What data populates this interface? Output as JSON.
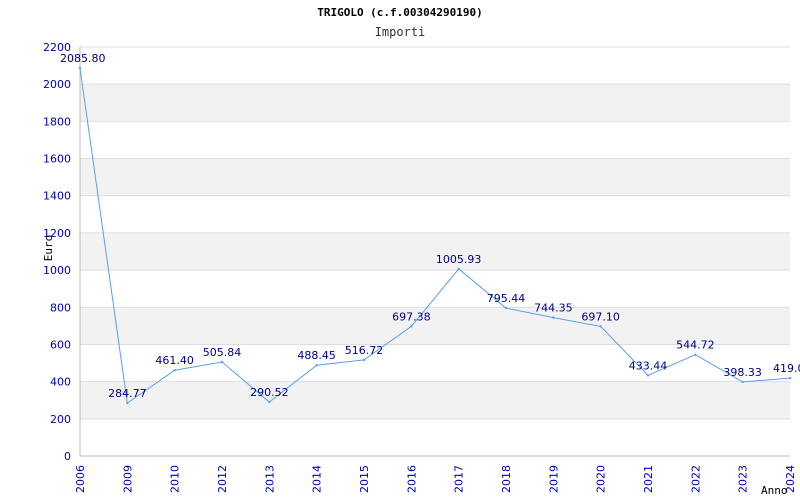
{
  "chart_data": {
    "type": "line",
    "title": "TRIGOLO (c.f.00304290190)",
    "subtitle": "Importi",
    "xlabel": "Anno",
    "ylabel": "Euro",
    "categories": [
      "2006",
      "2009",
      "2010",
      "2012",
      "2013",
      "2014",
      "2015",
      "2016",
      "2017",
      "2018",
      "2019",
      "2020",
      "2021",
      "2022",
      "2023",
      "2024"
    ],
    "series": [
      {
        "values": [
          2085.8,
          284.77,
          461.4,
          505.84,
          290.52,
          488.45,
          516.72,
          697.38,
          1005.93,
          795.44,
          744.35,
          697.1,
          433.44,
          544.72,
          398.33,
          419.0
        ]
      }
    ],
    "data_labels": [
      "2085.80",
      "284.77",
      "461.40",
      "505.84",
      "290.52",
      "488.45",
      "516.72",
      "697.38",
      "1005.93",
      "795.44",
      "744.35",
      "697.10",
      "433.44",
      "544.72",
      "398.33",
      "419.0"
    ],
    "ylim": [
      0,
      2200
    ],
    "yticks": [
      0,
      200,
      400,
      600,
      800,
      1000,
      1200,
      1400,
      1600,
      1800,
      2000,
      2200
    ],
    "grid": true,
    "colors": {
      "line": "#5aa0e8",
      "band": "#f2f2f2",
      "grid": "#dddddd",
      "tick_text": "#0000aa",
      "label_text": "#000080"
    }
  }
}
